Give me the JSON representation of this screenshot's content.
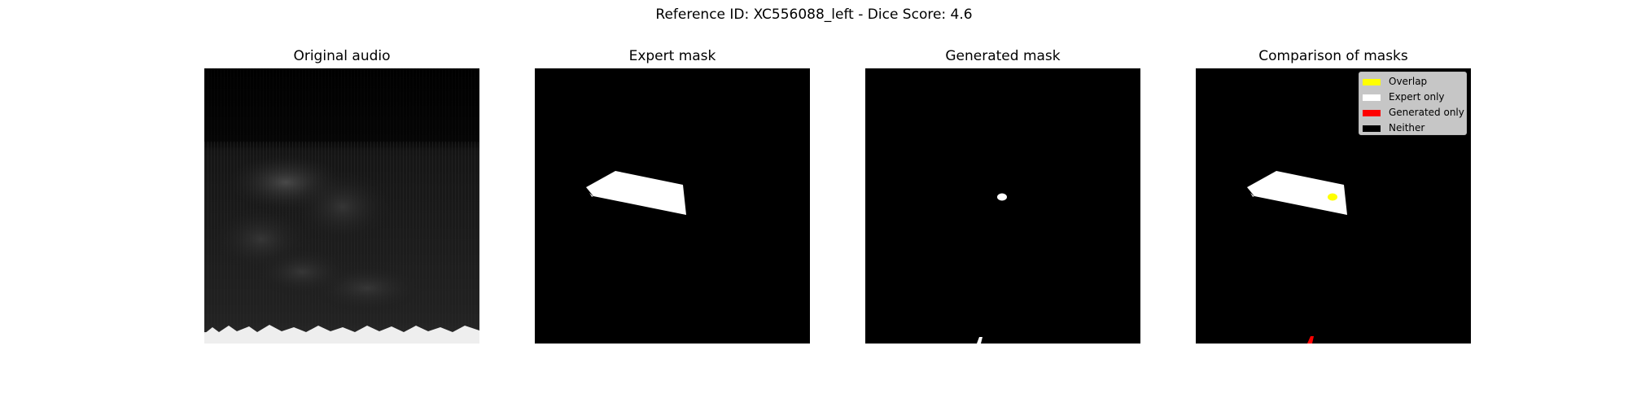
{
  "figure": {
    "suptitle": "Reference ID: XC556088_left - Dice Score: 4.6"
  },
  "panels": [
    {
      "title": "Original audio"
    },
    {
      "title": "Expert mask"
    },
    {
      "title": "Generated mask"
    },
    {
      "title": "Comparison of masks"
    }
  ],
  "legend": {
    "location": "upper right",
    "items": [
      {
        "label": "Overlap",
        "color": "#ffff00"
      },
      {
        "label": "Expert only",
        "color": "#ffffff"
      },
      {
        "label": "Generated only",
        "color": "#ff0000"
      },
      {
        "label": "Neither",
        "color": "#000000"
      }
    ]
  }
}
